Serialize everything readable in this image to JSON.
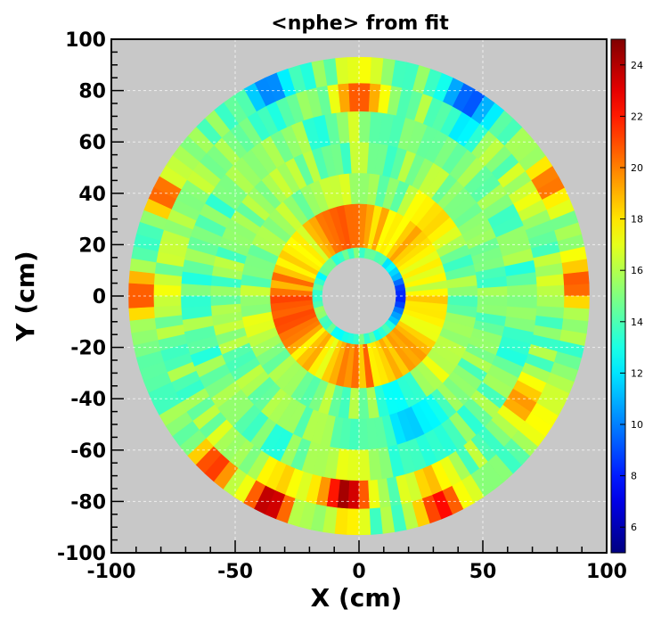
{
  "chart_data": {
    "type": "heatmap",
    "title": "<nphe> from fit",
    "xlabel": "X (cm)",
    "ylabel": "Y (cm)",
    "xlim": [
      -100,
      100
    ],
    "ylim": [
      -100,
      100
    ],
    "x_ticks": [
      "-100",
      "-50",
      "0",
      "50",
      "100"
    ],
    "y_ticks": [
      "-100",
      "-80",
      "-60",
      "-40",
      "-20",
      "0",
      "20",
      "40",
      "60",
      "80",
      "100"
    ],
    "zlim": [
      5,
      25
    ],
    "z_ticks": [
      "6",
      "8",
      "10",
      "12",
      "14",
      "16",
      "18",
      "20",
      "22",
      "24"
    ],
    "colormap": "jet",
    "grid": true,
    "background_color": "#c8c8c8",
    "geometry": "annular (ring) detector map",
    "inner_radius_cm": 15,
    "outer_radius_cm": 93,
    "rings": [
      {
        "r_inner": 15,
        "r_outer": 19,
        "sectors": 48,
        "base_nphe": 13.5
      },
      {
        "r_inner": 19,
        "r_outer": 36,
        "sectors": 72,
        "base_nphe": 17.5
      },
      {
        "r_inner": 36,
        "r_outer": 48,
        "sectors": 72,
        "base_nphe": 15.0
      },
      {
        "r_inner": 48,
        "r_outer": 60,
        "sectors": 96,
        "base_nphe": 15.0
      },
      {
        "r_inner": 60,
        "r_outer": 72,
        "sectors": 96,
        "base_nphe": 14.5
      },
      {
        "r_inner": 72,
        "r_outer": 83,
        "sectors": 120,
        "base_nphe": 15.0
      },
      {
        "r_inner": 83,
        "r_outer": 93,
        "sectors": 120,
        "base_nphe": 14.5
      }
    ],
    "hotspots": [
      {
        "x": -30,
        "y": -10,
        "nphe": 21.5
      },
      {
        "x": -8,
        "y": 30,
        "nphe": 21.0
      },
      {
        "x": 25,
        "y": 25,
        "nphe": 20.0
      },
      {
        "x": 23,
        "y": -22,
        "nphe": 20.0
      },
      {
        "x": -85,
        "y": 43,
        "nphe": 24.0
      },
      {
        "x": -60,
        "y": -68,
        "nphe": 22.0
      },
      {
        "x": -36,
        "y": -80,
        "nphe": 24.0
      },
      {
        "x": -5,
        "y": -76,
        "nphe": 24.5
      },
      {
        "x": 33,
        "y": -80,
        "nphe": 22.5
      },
      {
        "x": 0,
        "y": 78,
        "nphe": 21.0
      },
      {
        "x": 75,
        "y": 43,
        "nphe": 20.5
      },
      {
        "x": 88,
        "y": 5,
        "nphe": 21.0
      },
      {
        "x": -88,
        "y": 0,
        "nphe": 21.0
      },
      {
        "x": 68,
        "y": -43,
        "nphe": 20.0
      }
    ],
    "coldspots": [
      {
        "x": 15,
        "y": 0,
        "nphe": 8.0
      },
      {
        "x": 44,
        "y": 75,
        "nphe": 9.0
      },
      {
        "x": -36,
        "y": 80,
        "nphe": 10.0
      },
      {
        "x": 20,
        "y": -45,
        "nphe": 10.5
      }
    ]
  }
}
